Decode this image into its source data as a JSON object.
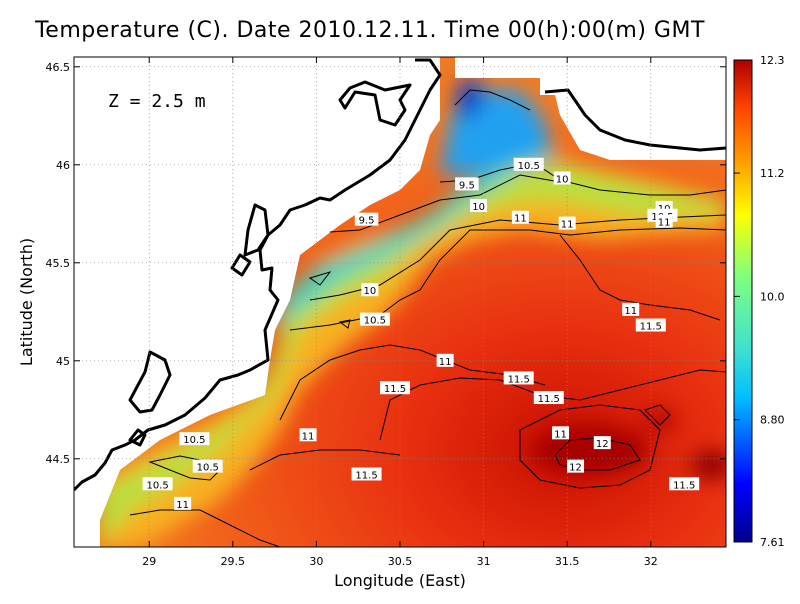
{
  "title": "Temperature (C). Date 2010.12.11. Time 00(h):00(m) GMT",
  "depth_label": "Z = 2.5 m",
  "chart_data": {
    "type": "heatmap",
    "title": "Temperature (C). Date 2010.12.11. Time 00(h):00(m) GMT",
    "xlabel": "Longitude (East)",
    "ylabel": "Latitude (North)",
    "xlim": [
      28.55,
      32.45
    ],
    "ylim": [
      44.05,
      46.55
    ],
    "xticks": [
      29,
      29.5,
      30,
      30.5,
      31,
      31.5,
      32
    ],
    "xtick_labels": [
      "29",
      "29.5",
      "30",
      "30.5",
      "31",
      "31.5",
      "32"
    ],
    "yticks": [
      44.5,
      45,
      45.5,
      46,
      46.5
    ],
    "ytick_labels": [
      "44.5",
      "45",
      "45.5",
      "46",
      "46.5"
    ],
    "grid": true,
    "colorbar": {
      "min": 7.61,
      "max": 12.3,
      "ticks": [
        12.3,
        11.2,
        10.0,
        8.8,
        7.61
      ],
      "tick_labels": [
        "12.3",
        "11.2",
        "10.0",
        "8.80",
        "7.61"
      ],
      "colors": [
        "#00008b",
        "#0000ff",
        "#00bfff",
        "#40e0d0",
        "#7fff7f",
        "#ffff00",
        "#ffa500",
        "#ff4500",
        "#b00000"
      ]
    },
    "contour_labels": [
      {
        "text": "9.5",
        "lon": 30.9,
        "lat": 45.9
      },
      {
        "text": "10.5",
        "lon": 31.27,
        "lat": 46.0
      },
      {
        "text": "10",
        "lon": 31.47,
        "lat": 45.93
      },
      {
        "text": "10",
        "lon": 30.97,
        "lat": 45.79
      },
      {
        "text": "11",
        "lon": 31.22,
        "lat": 45.73
      },
      {
        "text": "9.5",
        "lon": 30.3,
        "lat": 45.72
      },
      {
        "text": "11",
        "lon": 31.5,
        "lat": 45.7
      },
      {
        "text": "10",
        "lon": 32.08,
        "lat": 45.78
      },
      {
        "text": "10.5",
        "lon": 32.07,
        "lat": 45.74
      },
      {
        "text": "11",
        "lon": 32.08,
        "lat": 45.71
      },
      {
        "text": "10",
        "lon": 30.32,
        "lat": 45.36
      },
      {
        "text": "10.5",
        "lon": 30.35,
        "lat": 45.21
      },
      {
        "text": "11",
        "lon": 31.88,
        "lat": 45.26
      },
      {
        "text": "11.5",
        "lon": 32.0,
        "lat": 45.18
      },
      {
        "text": "11",
        "lon": 30.77,
        "lat": 45.0
      },
      {
        "text": "11.5",
        "lon": 30.47,
        "lat": 44.86
      },
      {
        "text": "11.5",
        "lon": 31.21,
        "lat": 44.91
      },
      {
        "text": "11.5",
        "lon": 31.39,
        "lat": 44.81
      },
      {
        "text": "11",
        "lon": 29.95,
        "lat": 44.62
      },
      {
        "text": "10.5",
        "lon": 29.27,
        "lat": 44.6
      },
      {
        "text": "12",
        "lon": 31.71,
        "lat": 44.58
      },
      {
        "text": "11",
        "lon": 31.46,
        "lat": 44.63
      },
      {
        "text": "10.5",
        "lon": 29.35,
        "lat": 44.46
      },
      {
        "text": "12",
        "lon": 31.55,
        "lat": 44.46
      },
      {
        "text": "11.5",
        "lon": 30.3,
        "lat": 44.42
      },
      {
        "text": "10.5",
        "lon": 29.05,
        "lat": 44.37
      },
      {
        "text": "11.5",
        "lon": 32.2,
        "lat": 44.37
      },
      {
        "text": "11",
        "lon": 29.2,
        "lat": 44.27
      }
    ]
  }
}
